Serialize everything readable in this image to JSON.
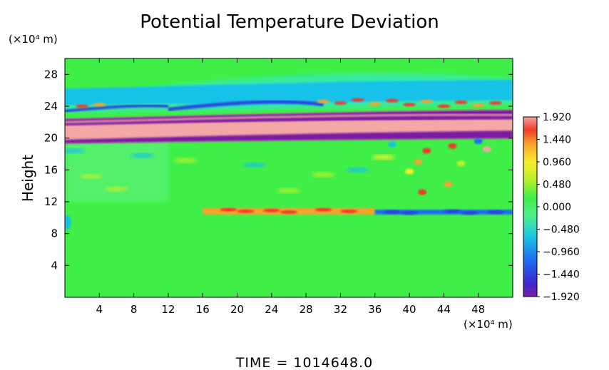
{
  "chart_data": {
    "type": "heatmap",
    "title": "Potential Temperature Deviation",
    "ylabel": "Height",
    "x_unit_label": "(×10⁴ m)",
    "y_unit_label": "(×10⁴ m)",
    "time_label": "TIME  =  1014648.0",
    "xlim": [
      0,
      52
    ],
    "ylim": [
      0,
      30
    ],
    "x_ticks": [
      4,
      8,
      12,
      16,
      20,
      24,
      28,
      32,
      36,
      40,
      44,
      48
    ],
    "y_ticks": [
      4,
      8,
      12,
      16,
      20,
      24,
      28
    ],
    "colorbar": {
      "min": -1.92,
      "max": 1.92,
      "tick_values": [
        1.92,
        1.44,
        0.96,
        0.48,
        0.0,
        -0.48,
        -0.96,
        -1.44,
        -1.92
      ],
      "tick_labels": [
        "1.920",
        "1.440",
        "0.960",
        "0.480",
        "0.000",
        "−0.480",
        "−0.960",
        "−1.440",
        "−1.920"
      ],
      "colors": [
        "#7a1fa2",
        "#3a2bd6",
        "#1e6cf0",
        "#19c2e8",
        "#4cf08a",
        "#3ef046",
        "#b8f029",
        "#f7ee2a",
        "#f7a22a",
        "#ef3b2a",
        "#f5a6a6"
      ]
    },
    "features": [
      {
        "kind": "band",
        "value": 1.92,
        "x_start": 0,
        "x_end": 52,
        "y_start": 19.8,
        "y_end": 23.2,
        "note": ""
      },
      {
        "kind": "band",
        "value": -1.92,
        "x_start": 0,
        "x_end": 52,
        "y_start": 19.8,
        "y_end": 20.6,
        "note": ""
      },
      {
        "kind": "band",
        "value": -1.92,
        "x_start": 0,
        "x_end": 52,
        "y_start": 22.2,
        "y_end": 23.2,
        "note": ""
      },
      {
        "kind": "band",
        "value": 1.0,
        "x_start": 16,
        "x_end": 36,
        "y_start": 10.4,
        "y_end": 11.2,
        "note": ""
      },
      {
        "kind": "band",
        "value": -1.2,
        "x_start": 36,
        "x_end": 52,
        "y_start": 10.4,
        "y_end": 11.0,
        "note": ""
      },
      {
        "kind": "band",
        "value": -0.6,
        "x_start": 0,
        "x_end": 52,
        "y_start": 24.6,
        "y_end": 27.0,
        "note": ""
      }
    ]
  }
}
